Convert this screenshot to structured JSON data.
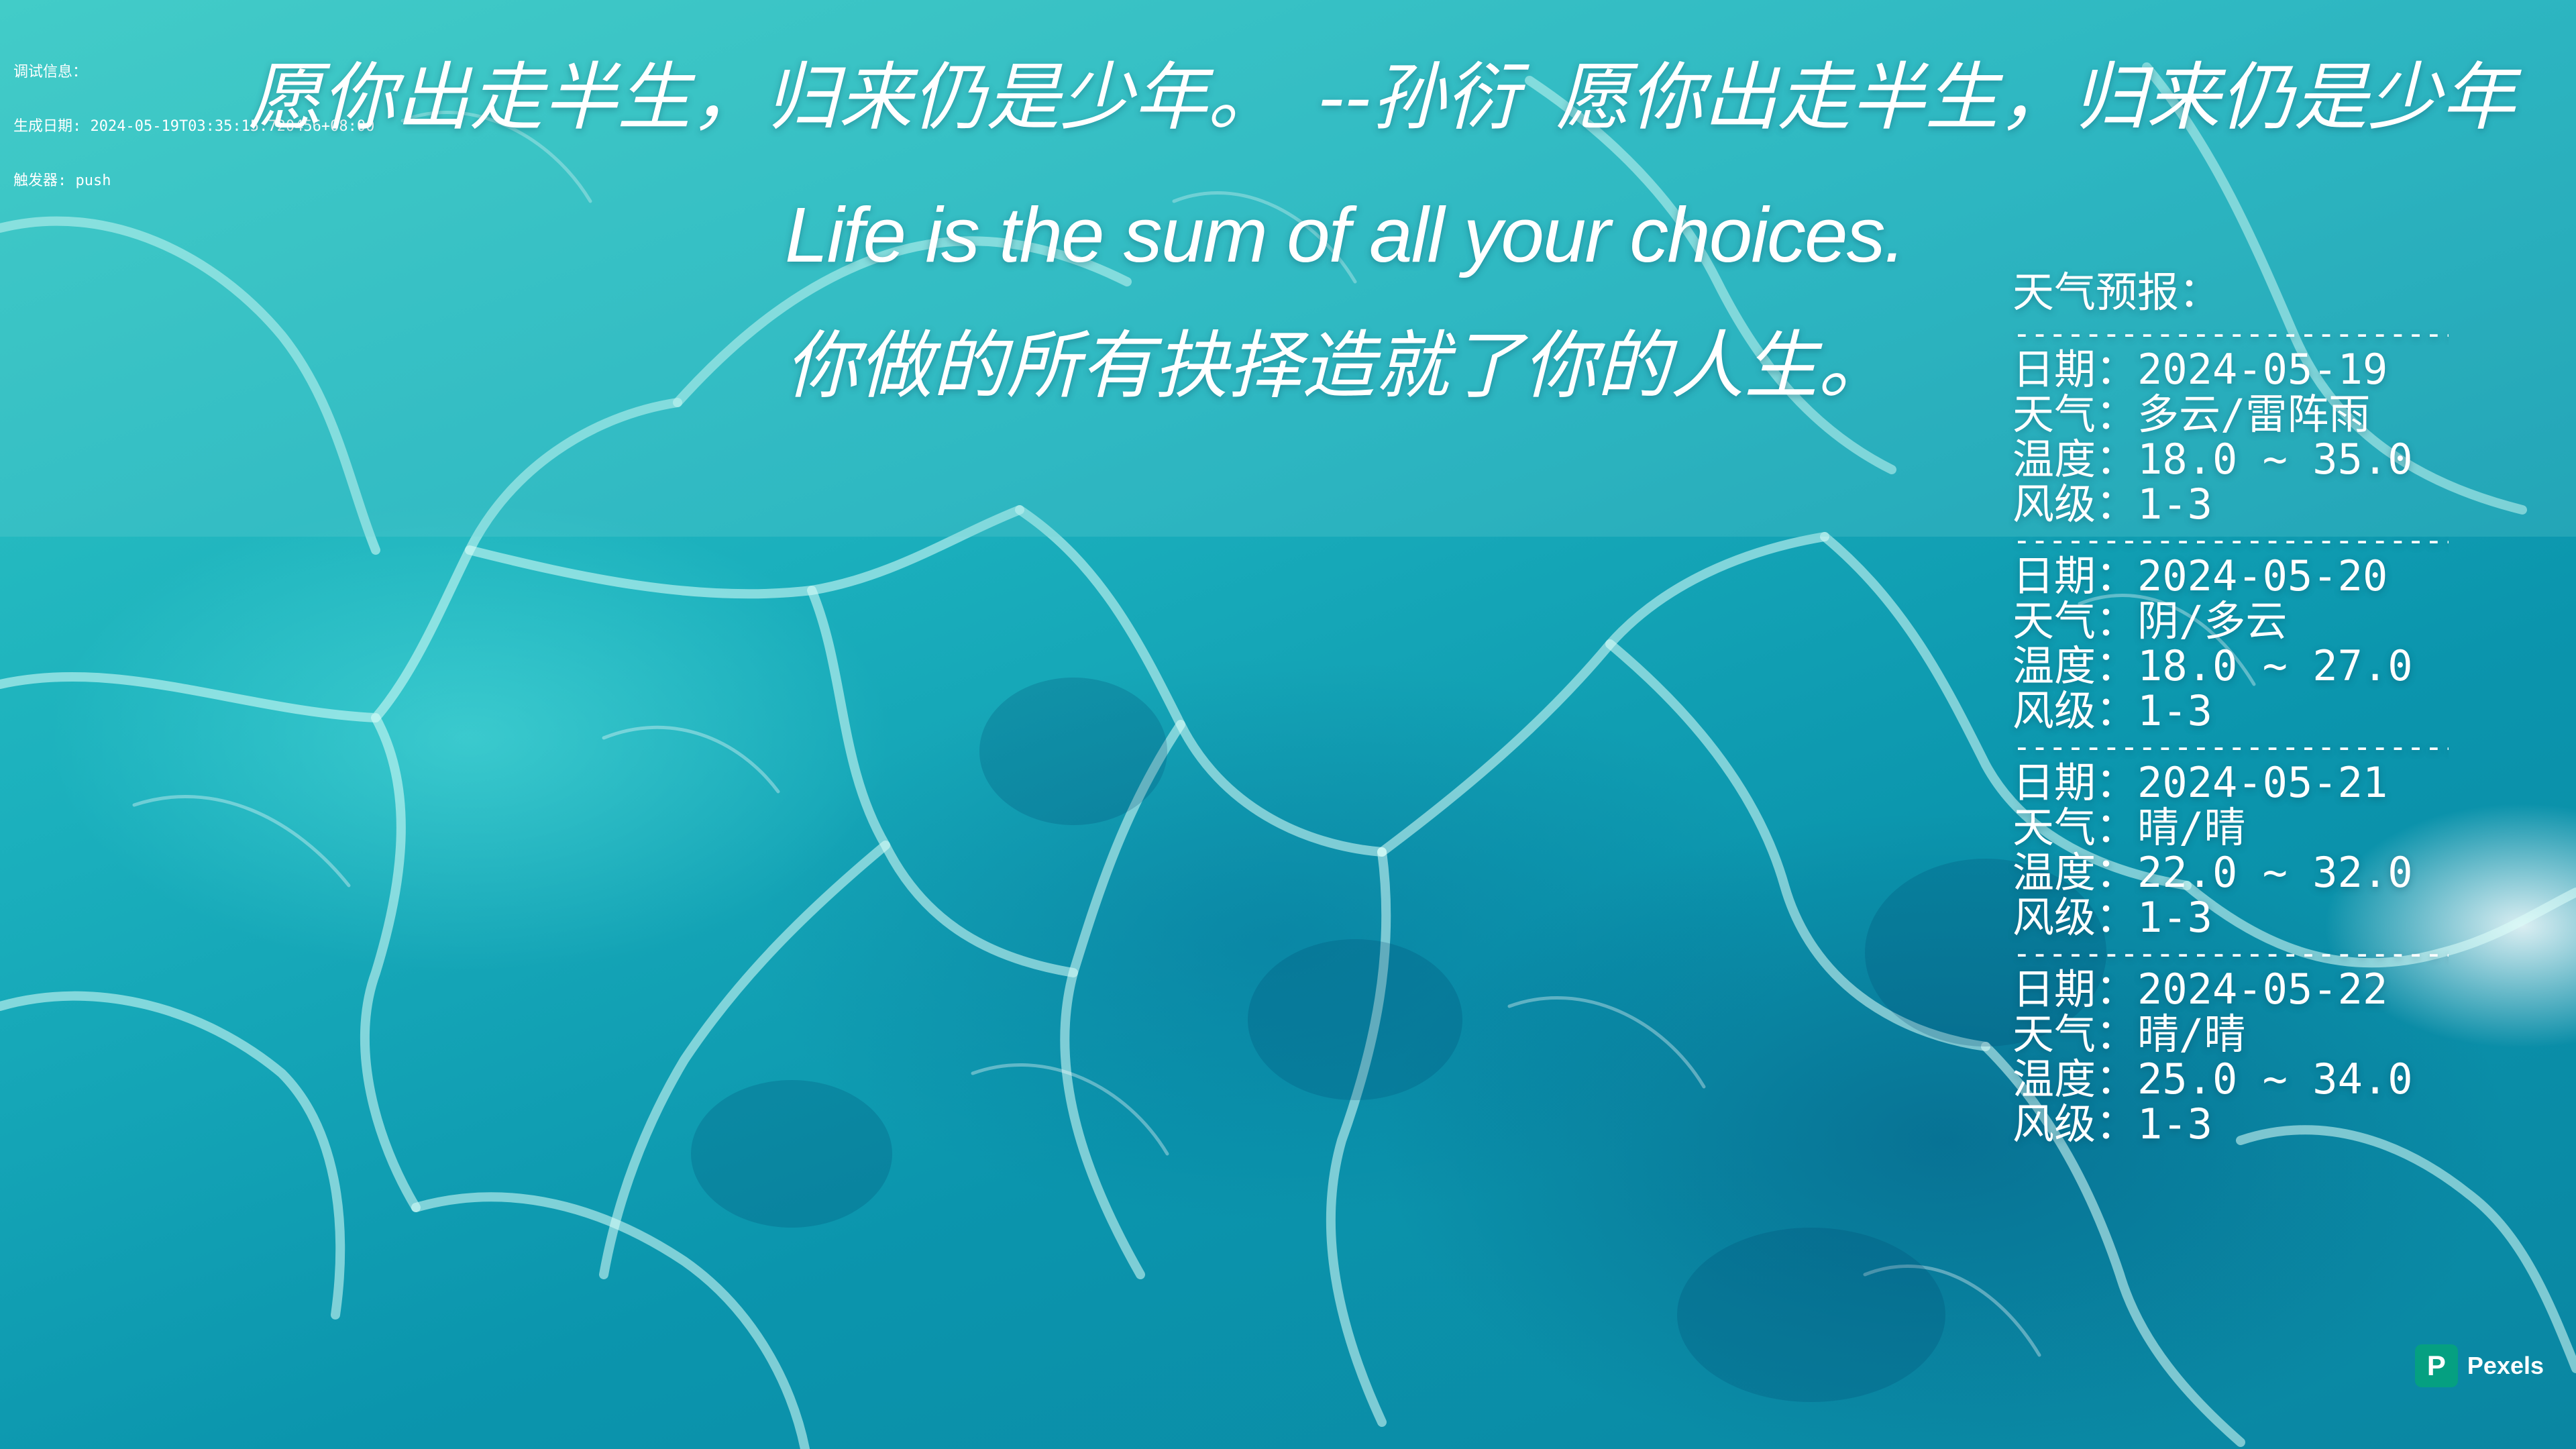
{
  "debug": {
    "title": "调试信息：",
    "generated": "生成日期: 2024-05-19T03:35:15.720456+08:00",
    "trigger": "触发器: push"
  },
  "quote": {
    "cn": "愿你出走半生，归来仍是少年。",
    "author": "--孙衍",
    "cn_repeat": "愿你出走半生，归来仍是少年",
    "en": "Life is the sum of all your choices.",
    "zh": "你做的所有抉择造就了你的人生。"
  },
  "weather": {
    "heading": "天气预报：",
    "divider": "------------------------------",
    "days": [
      {
        "date": "日期：2024-05-19",
        "weather": "天气：多云/雷阵雨",
        "temp": "温度：18.0 ~ 35.0",
        "wind": "风级：1-3"
      },
      {
        "date": "日期：2024-05-20",
        "weather": "天气：阴/多云",
        "temp": "温度：18.0 ~ 27.0",
        "wind": "风级：1-3"
      },
      {
        "date": "日期：2024-05-21",
        "weather": "天气：晴/晴",
        "temp": "温度：22.0 ~ 32.0",
        "wind": "风级：1-3"
      },
      {
        "date": "日期：2024-05-22",
        "weather": "天气：晴/晴",
        "temp": "温度：25.0 ~ 34.0",
        "wind": "风级：1-3"
      }
    ]
  },
  "watermark": {
    "logo_letter": "P",
    "label": "Pexels",
    "logo_color": "#05a081"
  },
  "colors": {
    "water_light": "#34c9c4",
    "water_deep": "#0a86a2",
    "text": "#ffffff"
  }
}
